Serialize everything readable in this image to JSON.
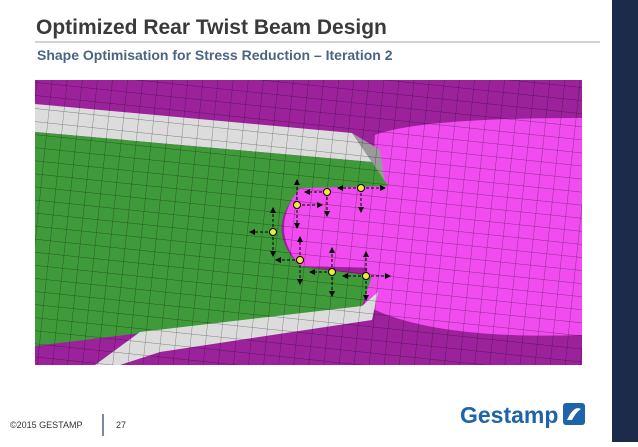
{
  "header": {
    "title": "Optimized Rear Twist Beam Design",
    "subtitle": "Shape Optimisation for Stress Reduction – Iteration 2"
  },
  "footer": {
    "copyright": "©2015 GESTAMP",
    "page_number": "27",
    "logo": "Gestamp"
  }
}
